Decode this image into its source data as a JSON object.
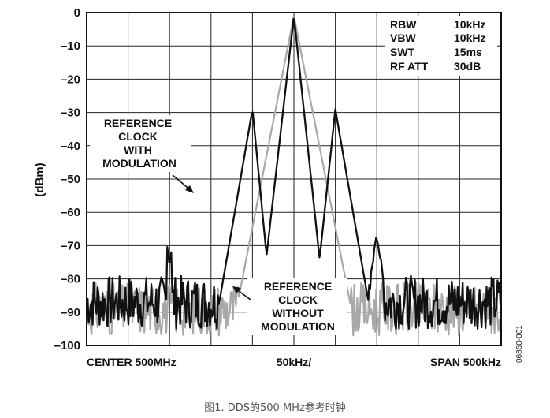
{
  "caption": "图1. DDS的500 MHz参考时钟",
  "figure_id": "06860-001",
  "chart_data": {
    "type": "line",
    "title": "",
    "ylabel": "(dBm)",
    "xlabel_center": "50kHz/",
    "x_left_label": "CENTER 500MHz",
    "x_right_label": "SPAN 500kHz",
    "xlim": [
      -250,
      250
    ],
    "ylim": [
      -100,
      0
    ],
    "x_unit": "kHz offset",
    "grid": true,
    "y_ticks": [
      "0",
      "–10",
      "–20",
      "–30",
      "–40",
      "–50",
      "–60",
      "–70",
      "–80",
      "–90",
      "–100"
    ],
    "settings": [
      {
        "label": "RBW",
        "value": "10kHz"
      },
      {
        "label": "VBW",
        "value": "10kHz"
      },
      {
        "label": "SWT",
        "value": "15ms"
      },
      {
        "label": "RF ATT",
        "value": "30dB"
      }
    ],
    "annotations": [
      {
        "lines": [
          "REFERENCE",
          "CLOCK",
          "WITH",
          "MODULATION"
        ],
        "target": "series-with-modulation"
      },
      {
        "lines": [
          "REFERENCE",
          "CLOCK",
          "WITHOUT",
          "MODULATION"
        ],
        "target": "series-without-modulation"
      }
    ],
    "series": [
      {
        "key": "with_modulation",
        "color": "#111111",
        "peaks": [
          {
            "x": 0,
            "y": -1
          },
          {
            "x": -50,
            "y": -29
          },
          {
            "x": 50,
            "y": -29
          },
          {
            "x": 100,
            "y": -67
          }
        ],
        "troughs": [
          {
            "x": -33,
            "y": -73
          },
          {
            "x": 31,
            "y": -74
          }
        ],
        "noise_floor": -87
      },
      {
        "key": "without_modulation",
        "color": "#a8a8a8",
        "peaks": [
          {
            "x": 0,
            "y": -1
          }
        ],
        "noise_floor": -89
      }
    ]
  }
}
